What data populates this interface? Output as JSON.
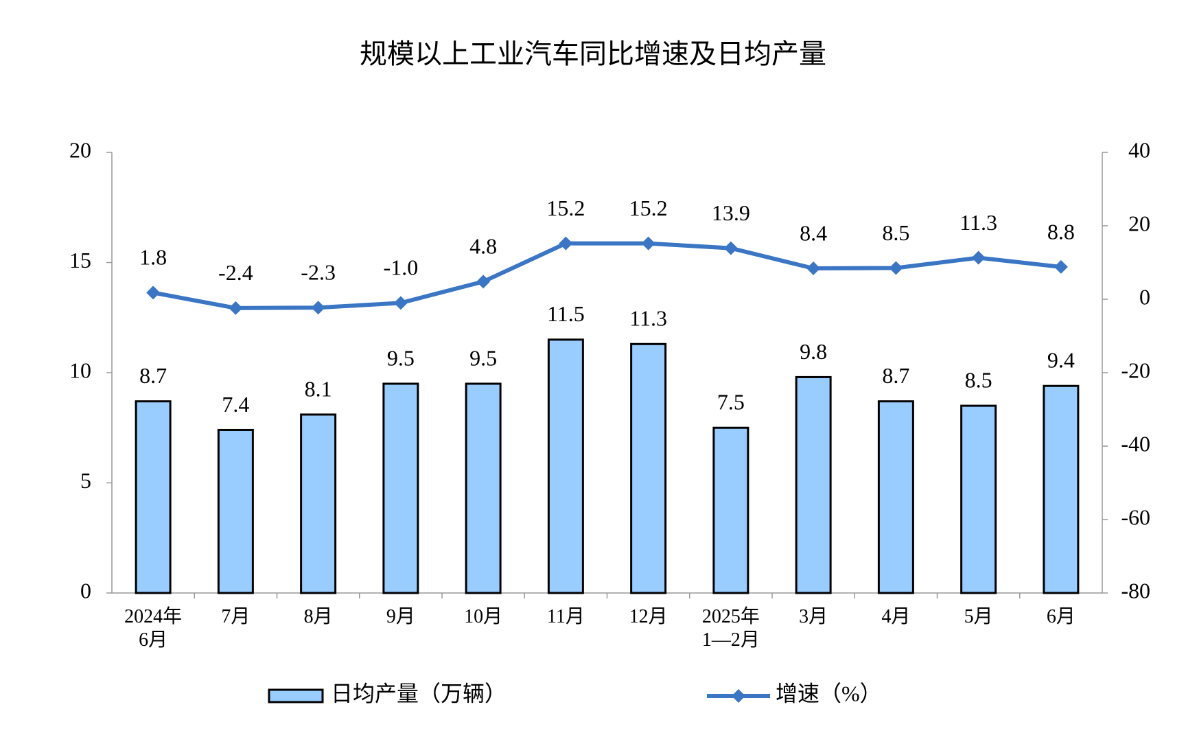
{
  "chart_data": {
    "type": "bar",
    "title": "规模以上工业汽车同比增速及日均产量",
    "categories": [
      "2024年\n6月",
      "7月",
      "8月",
      "9月",
      "10月",
      "11月",
      "12月",
      "2025年\n1—2月",
      "3月",
      "4月",
      "5月",
      "6月"
    ],
    "series": [
      {
        "name": "日均产量（万辆）",
        "type": "bar",
        "color": "#99ccff",
        "axis": "y",
        "values": [
          8.7,
          7.4,
          8.1,
          9.5,
          9.5,
          11.5,
          11.3,
          7.5,
          9.8,
          8.7,
          8.5,
          9.4
        ]
      },
      {
        "name": "增速（%）",
        "type": "line",
        "color": "#3a76c4",
        "axis": "y2",
        "values": [
          1.8,
          -2.4,
          -2.3,
          -1.0,
          4.8,
          15.2,
          15.2,
          13.9,
          8.4,
          8.5,
          11.3,
          8.8
        ],
        "value_labels": [
          "1.8",
          "-2.4",
          "-2.3",
          "-1.0",
          "4.8",
          "15.2",
          "15.2",
          "13.9",
          "8.4",
          "8.5",
          "11.3",
          "8.8"
        ]
      }
    ],
    "ylim": [
      0,
      20
    ],
    "yticks": [
      0,
      5,
      10,
      15,
      20
    ],
    "y2lim": [
      -80,
      40
    ],
    "y2ticks": [
      -80,
      -60,
      -40,
      -20,
      0,
      20,
      40
    ],
    "grid": false
  }
}
